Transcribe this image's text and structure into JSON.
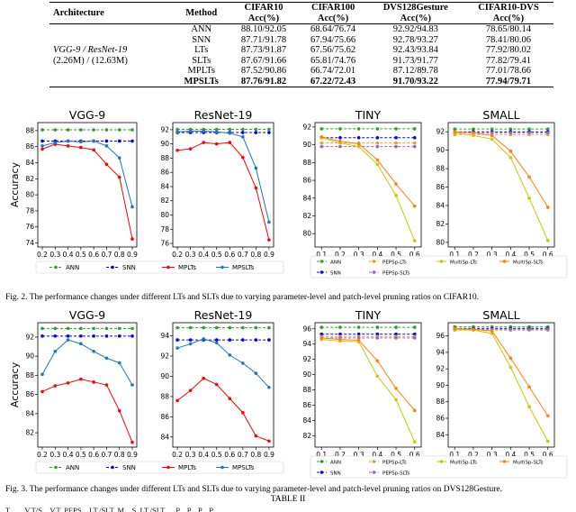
{
  "table": {
    "headers": [
      "Architecture",
      "Method",
      "CIFAR10 Acc(%)",
      "CIFAR100 Acc(%)",
      "DVS128Gesture Acc(%)",
      "CIFAR10-DVS Acc(%)"
    ],
    "headers_line1": [
      "Architecture",
      "Method",
      "CIFAR10",
      "CIFAR100",
      "DVS128Gesture",
      "CIFAR10-DVS"
    ],
    "headers_line2": [
      "",
      "",
      "Acc(%)",
      "Acc(%)",
      "Acc(%)",
      "Acc(%)"
    ],
    "arch_line1": "VGG-9 / ResNet-19",
    "arch_line2": "(2.26M) / (12.63M)",
    "rows": [
      {
        "method": "ANN",
        "c10": "88.10/92.05",
        "c100": "68.64/76.74",
        "dvs": "92.92/94.83",
        "c10dvs": "78.65/80.14"
      },
      {
        "method": "SNN",
        "c10": "87.71/91.78",
        "c100": "67.94/75.66",
        "dvs": "92.78/93.27",
        "c10dvs": "78.41/80.06"
      },
      {
        "method": "LTs",
        "c10": "87.73/91.87",
        "c100": "67.56/75.62",
        "dvs": "92.43/93.84",
        "c10dvs": "77.92/80.02"
      },
      {
        "method": "SLTs",
        "c10": "87.67/91.66",
        "c100": "65.81/74.76",
        "dvs": "91.73/91.77",
        "c10dvs": "77.82/79.41"
      },
      {
        "method": "MPLTs",
        "c10": "87.52/90.86",
        "c100": "66.74/72.01",
        "dvs": "87.12/89.78",
        "c10dvs": "77.01/78.66"
      },
      {
        "method": "MPSLTs",
        "c10": "87.76/91.82",
        "c100": "67.22/72.43",
        "dvs": "91.70/93.22",
        "c10dvs": "77.94/79.71"
      }
    ]
  },
  "figure2": {
    "caption": "Fig. 2.    The performance changes under different LTs and SLTs due to varying parameter-level and patch-level pruning ratios on CIFAR10.",
    "xlabel": "Pruning Ratio",
    "ylabel": "Accuracy",
    "legend_left": [
      "ANN",
      "SNN",
      "MPLTs",
      "MPSLTs"
    ],
    "legend_right": [
      "ANN",
      "SNN",
      "PEPSp-LTs",
      "PEPSp-SLTs",
      "MultiSp-LTs",
      "MultiSp-SLTs"
    ]
  },
  "figure3": {
    "caption": "Fig. 3.    The performance changes under different LTs and SLTs due to varying parameter-level and patch-level pruning ratios on DVS128Gesture.",
    "xlabel": "Pruning Ratio",
    "ylabel": "Accuracy",
    "legend_left": [
      "ANN",
      "SNN",
      "MPLTs",
      "MPSLTs"
    ],
    "legend_right": [
      "ANN",
      "SNN",
      "PEPSp-LTs",
      "PEPSp-SLTs",
      "MultiSp-LTs",
      "MultiSp-SLTs"
    ]
  },
  "table2_title": "TABLE II",
  "cut_text": "T... ... V.T/S... V.T. PEPS... LT./SLT. M... S. LT./SLT. ... P... P... P... P...",
  "colors": {
    "ann": "#2ca02c",
    "snn": "#0000ff",
    "mplts": "#ff0000",
    "mpslts": "#1f77b4",
    "pepsp_lts": "#e8a020",
    "pepsp_slts": "#9467bd",
    "multisp_lts": "#c8c800",
    "multisp_slts": "#ff7f0e"
  },
  "chart_data": [
    {
      "type": "line",
      "title": "VGG-9",
      "figure": "Fig. 2",
      "xlabel": "Pruning Ratio",
      "ylabel": "Accuracy",
      "x": [
        0.2,
        0.3,
        0.4,
        0.5,
        0.6,
        0.7,
        0.8,
        0.9
      ],
      "ylim": [
        73.5,
        89
      ],
      "yticks": [
        74,
        76,
        78,
        80,
        82,
        84,
        86,
        88
      ],
      "xticks": [
        0.2,
        0.3,
        0.4,
        0.5,
        0.6,
        0.7,
        0.8,
        0.9
      ],
      "series": [
        {
          "name": "ANN",
          "color": "#2ca02c",
          "values": [
            88.1,
            88.1,
            88.1,
            88.1,
            88.1,
            88.1,
            88.1,
            88.1
          ]
        },
        {
          "name": "SNN",
          "color": "#0000ff",
          "values": [
            86.7,
            86.7,
            86.7,
            86.7,
            86.7,
            86.7,
            86.7,
            86.7
          ]
        },
        {
          "name": "MPLTs",
          "color": "#ff0000",
          "values": [
            85.7,
            86.3,
            86.1,
            85.9,
            85.6,
            83.8,
            82.2,
            74.5
          ]
        },
        {
          "name": "MPSLTs",
          "color": "#1f77b4",
          "values": [
            86.1,
            86.5,
            86.7,
            86.6,
            86.7,
            86.1,
            84.6,
            78.5
          ]
        }
      ]
    },
    {
      "type": "line",
      "title": "ResNet-19",
      "figure": "Fig. 2",
      "xlabel": "Pruning Ratio",
      "ylabel": "",
      "x": [
        0.2,
        0.3,
        0.4,
        0.5,
        0.6,
        0.7,
        0.8,
        0.9
      ],
      "ylim": [
        75.5,
        93
      ],
      "yticks": [
        76,
        78,
        80,
        82,
        84,
        86,
        88,
        90,
        92
      ],
      "xticks": [
        0.2,
        0.3,
        0.4,
        0.5,
        0.6,
        0.7,
        0.8,
        0.9
      ],
      "series": [
        {
          "name": "ANN",
          "color": "#2ca02c",
          "values": [
            92.05,
            92.05,
            92.05,
            92.05,
            92.05,
            92.05,
            92.05,
            92.05
          ]
        },
        {
          "name": "SNN",
          "color": "#0000ff",
          "values": [
            91.6,
            91.6,
            91.6,
            91.6,
            91.6,
            91.6,
            91.6,
            91.6
          ]
        },
        {
          "name": "MPLTs",
          "color": "#ff0000",
          "values": [
            89.1,
            89.3,
            90.2,
            90.0,
            90.2,
            88.1,
            83.8,
            76.5
          ]
        },
        {
          "name": "MPSLTs",
          "color": "#1f77b4",
          "values": [
            91.7,
            91.8,
            91.8,
            91.7,
            91.5,
            91.0,
            86.6,
            79.0
          ]
        }
      ]
    },
    {
      "type": "line",
      "title": "TINY",
      "figure": "Fig. 2",
      "xlabel": "Pruning Ratio",
      "ylabel": "",
      "x": [
        0.1,
        0.2,
        0.3,
        0.4,
        0.5,
        0.6
      ],
      "ylim": [
        78.5,
        92.5
      ],
      "yticks": [
        80,
        82,
        84,
        86,
        88,
        90,
        92
      ],
      "xticks": [
        0.1,
        0.2,
        0.3,
        0.4,
        0.5,
        0.6
      ],
      "series": [
        {
          "name": "ANN",
          "color": "#2ca02c",
          "values": [
            91.8,
            91.8,
            91.8,
            91.8,
            91.8,
            91.8
          ]
        },
        {
          "name": "SNN",
          "color": "#0000ff",
          "values": [
            90.8,
            90.8,
            90.8,
            90.8,
            90.8,
            90.8
          ]
        },
        {
          "name": "PEPSp-LTs",
          "color": "#e8a020",
          "values": [
            90.2,
            90.2,
            90.2,
            90.2,
            90.2,
            90.2
          ]
        },
        {
          "name": "PEPSp-SLTs",
          "color": "#9467bd",
          "values": [
            89.8,
            89.8,
            89.8,
            89.8,
            89.8,
            89.8
          ]
        },
        {
          "name": "MultiSp-LTs",
          "color": "#c8c800",
          "values": [
            90.8,
            90.2,
            89.8,
            87.8,
            84.3,
            79.2
          ]
        },
        {
          "name": "MultiSp-SLTs",
          "color": "#ff7f0e",
          "values": [
            90.9,
            90.4,
            90.1,
            88.3,
            85.6,
            83.1
          ]
        }
      ]
    },
    {
      "type": "line",
      "title": "SMALL",
      "figure": "Fig. 2",
      "xlabel": "Pruning Ratio",
      "ylabel": "",
      "x": [
        0.1,
        0.2,
        0.3,
        0.4,
        0.5,
        0.6
      ],
      "ylim": [
        79.5,
        93
      ],
      "yticks": [
        80,
        82,
        84,
        86,
        88,
        90,
        92
      ],
      "xticks": [
        0.1,
        0.2,
        0.3,
        0.4,
        0.5,
        0.6
      ],
      "series": [
        {
          "name": "ANN",
          "color": "#2ca02c",
          "values": [
            92.3,
            92.3,
            92.3,
            92.3,
            92.3,
            92.3
          ]
        },
        {
          "name": "SNN",
          "color": "#0000ff",
          "values": [
            92.0,
            92.0,
            92.0,
            92.0,
            92.0,
            92.0
          ]
        },
        {
          "name": "PEPSp-LTs",
          "color": "#e8a020",
          "values": [
            91.7,
            91.7,
            91.7,
            91.7,
            91.7,
            91.7
          ]
        },
        {
          "name": "PEPSp-SLTs",
          "color": "#9467bd",
          "values": [
            91.9,
            91.9,
            91.9,
            91.9,
            91.9,
            91.9
          ]
        },
        {
          "name": "MultiSp-LTs",
          "color": "#c8c800",
          "values": [
            91.9,
            91.6,
            91.2,
            89.2,
            84.8,
            80.2
          ]
        },
        {
          "name": "MultiSp-SLTs",
          "color": "#ff7f0e",
          "values": [
            92.0,
            91.9,
            91.6,
            89.9,
            87.1,
            83.8
          ]
        }
      ]
    },
    {
      "type": "line",
      "title": "VGG-9",
      "figure": "Fig. 3",
      "xlabel": "Pruning Ratio",
      "ylabel": "Accuracy",
      "x": [
        0.2,
        0.3,
        0.4,
        0.5,
        0.6,
        0.7,
        0.8,
        0.9
      ],
      "ylim": [
        80.5,
        93.5
      ],
      "yticks": [
        82,
        84,
        86,
        88,
        90,
        92
      ],
      "xticks": [
        0.2,
        0.3,
        0.4,
        0.5,
        0.6,
        0.7,
        0.8,
        0.9
      ],
      "series": [
        {
          "name": "ANN",
          "color": "#2ca02c",
          "values": [
            92.9,
            92.9,
            92.9,
            92.9,
            92.9,
            92.9,
            92.9,
            92.9
          ]
        },
        {
          "name": "SNN",
          "color": "#0000ff",
          "values": [
            92.1,
            92.1,
            92.1,
            92.1,
            92.1,
            92.1,
            92.1,
            92.1
          ]
        },
        {
          "name": "MPLTs",
          "color": "#ff0000",
          "values": [
            86.3,
            86.9,
            87.2,
            87.6,
            87.3,
            87.0,
            84.3,
            81.0
          ]
        },
        {
          "name": "MPSLTs",
          "color": "#1f77b4",
          "values": [
            88.1,
            90.5,
            91.7,
            91.3,
            90.5,
            89.8,
            89.3,
            87.0
          ]
        }
      ]
    },
    {
      "type": "line",
      "title": "ResNet-19",
      "figure": "Fig. 3",
      "xlabel": "Pruning Ratio",
      "ylabel": "",
      "x": [
        0.2,
        0.3,
        0.4,
        0.5,
        0.6,
        0.7,
        0.8,
        0.9
      ],
      "ylim": [
        83,
        95.3
      ],
      "yticks": [
        84,
        86,
        88,
        90,
        92,
        94
      ],
      "xticks": [
        0.2,
        0.3,
        0.4,
        0.5,
        0.6,
        0.7,
        0.8,
        0.9
      ],
      "series": [
        {
          "name": "ANN",
          "color": "#2ca02c",
          "values": [
            94.8,
            94.8,
            94.8,
            94.8,
            94.8,
            94.8,
            94.8,
            94.8
          ]
        },
        {
          "name": "SNN",
          "color": "#0000ff",
          "values": [
            93.6,
            93.6,
            93.6,
            93.6,
            93.6,
            93.6,
            93.6,
            93.6
          ]
        },
        {
          "name": "MPLTs",
          "color": "#ff0000",
          "values": [
            87.6,
            88.6,
            89.8,
            89.2,
            87.8,
            86.4,
            84.1,
            83.6
          ]
        },
        {
          "name": "MPSLTs",
          "color": "#1f77b4",
          "values": [
            92.8,
            93.2,
            93.7,
            93.3,
            92.1,
            91.3,
            90.3,
            88.9
          ]
        }
      ]
    },
    {
      "type": "line",
      "title": "TINY",
      "figure": "Fig. 3",
      "xlabel": "Pruning Ratio",
      "ylabel": "",
      "x": [
        0.1,
        0.2,
        0.3,
        0.4,
        0.5,
        0.6
      ],
      "ylim": [
        80.5,
        96.8
      ],
      "yticks": [
        82,
        84,
        86,
        88,
        90,
        92,
        94,
        96
      ],
      "xticks": [
        0.1,
        0.2,
        0.3,
        0.4,
        0.5,
        0.6
      ],
      "series": [
        {
          "name": "ANN",
          "color": "#2ca02c",
          "values": [
            96.2,
            96.2,
            96.2,
            96.2,
            96.2,
            96.2
          ]
        },
        {
          "name": "SNN",
          "color": "#0000ff",
          "values": [
            95.3,
            95.3,
            95.3,
            95.3,
            95.3,
            95.3
          ]
        },
        {
          "name": "PEPSp-LTs",
          "color": "#e8a020",
          "values": [
            95.0,
            95.0,
            95.0,
            95.0,
            95.0,
            95.0
          ]
        },
        {
          "name": "PEPSp-SLTs",
          "color": "#9467bd",
          "values": [
            94.8,
            94.8,
            94.8,
            94.8,
            94.8,
            94.8
          ]
        },
        {
          "name": "MultiSp-LTs",
          "color": "#c8c800",
          "values": [
            94.6,
            94.4,
            94.3,
            89.8,
            86.7,
            81.2
          ]
        },
        {
          "name": "MultiSp-SLTs",
          "color": "#ff7f0e",
          "values": [
            94.8,
            94.6,
            94.5,
            91.8,
            88.2,
            85.3
          ]
        }
      ]
    },
    {
      "type": "line",
      "title": "SMALL",
      "figure": "Fig. 3",
      "xlabel": "Pruning Ratio",
      "ylabel": "",
      "x": [
        0.1,
        0.2,
        0.3,
        0.4,
        0.5,
        0.6
      ],
      "ylim": [
        82.5,
        97.6
      ],
      "yticks": [
        84,
        86,
        88,
        90,
        92,
        94,
        96
      ],
      "xticks": [
        0.1,
        0.2,
        0.3,
        0.4,
        0.5,
        0.6
      ],
      "series": [
        {
          "name": "ANN",
          "color": "#2ca02c",
          "values": [
            97.1,
            97.1,
            97.1,
            97.1,
            97.1,
            97.1
          ]
        },
        {
          "name": "SNN",
          "color": "#0000ff",
          "values": [
            96.9,
            96.9,
            96.9,
            96.9,
            96.9,
            96.9
          ]
        },
        {
          "name": "PEPSp-LTs",
          "color": "#e8a020",
          "values": [
            96.7,
            96.7,
            96.7,
            96.7,
            96.7,
            96.7
          ]
        },
        {
          "name": "PEPSp-SLTs",
          "color": "#9467bd",
          "values": [
            96.8,
            96.8,
            96.8,
            96.8,
            96.8,
            96.8
          ]
        },
        {
          "name": "MultiSp-LTs",
          "color": "#c8c800",
          "values": [
            96.8,
            96.7,
            96.3,
            92.2,
            87.4,
            83.2
          ]
        },
        {
          "name": "MultiSp-SLTs",
          "color": "#ff7f0e",
          "values": [
            96.9,
            96.8,
            96.6,
            93.3,
            89.8,
            86.3
          ]
        }
      ]
    }
  ]
}
